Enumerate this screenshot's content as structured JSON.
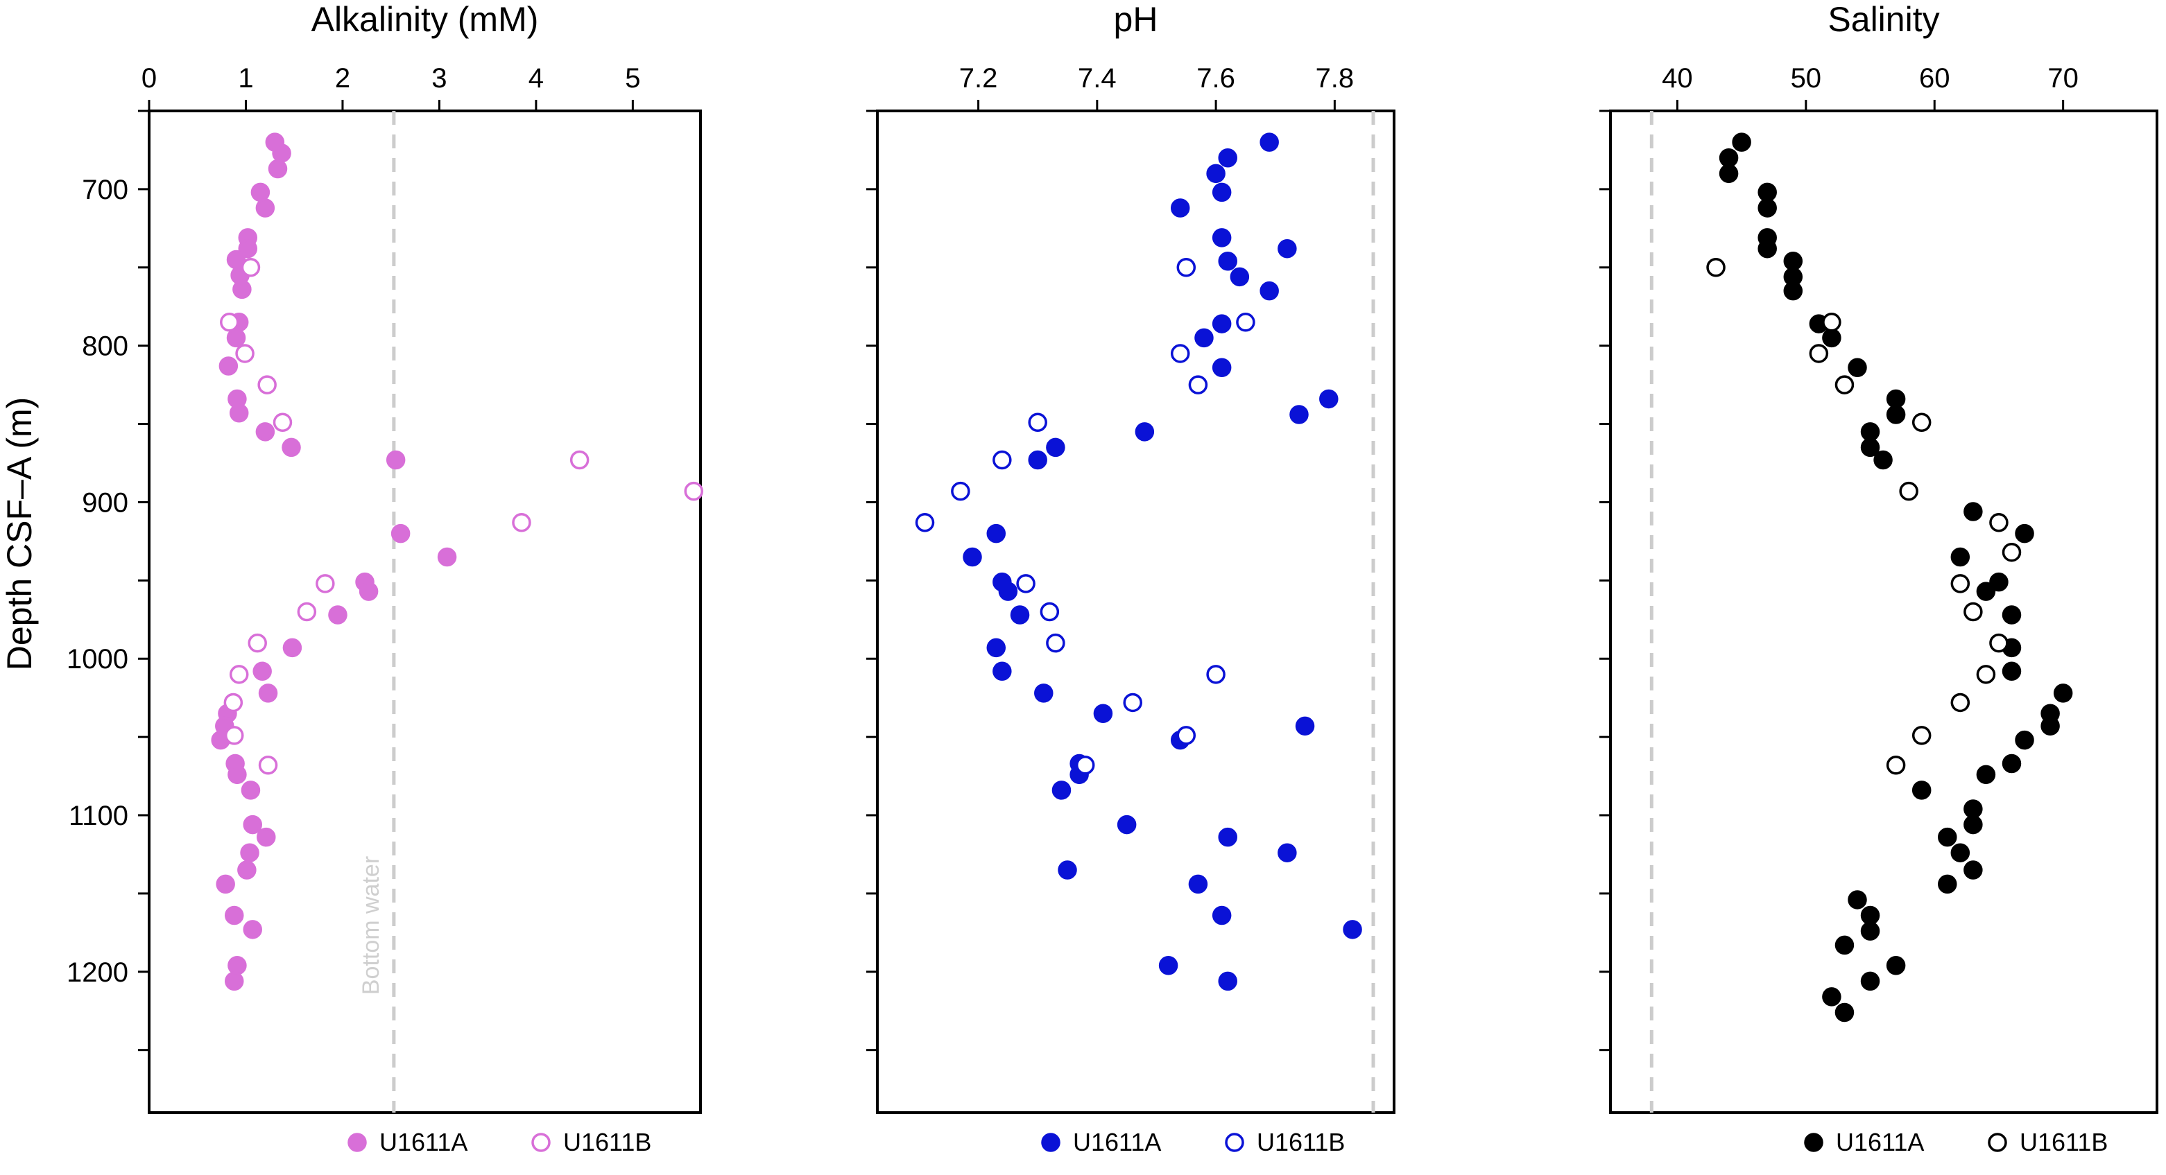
{
  "figure": {
    "ylabel": "Depth CSF–A (m)",
    "bottom_water_label": "Bottom water"
  },
  "chart_data": [
    {
      "type": "scatter",
      "title": "Alkalinity (mM)",
      "xlabel": "Alkalinity (mM)",
      "ylabel": "Depth CSF–A (m)",
      "xlim": [
        0,
        5.7
      ],
      "ylim": [
        1290,
        650
      ],
      "y_inverted": true,
      "xticks": [
        0,
        1,
        2,
        3,
        4,
        5
      ],
      "yticks": [
        700,
        800,
        900,
        1000,
        1100,
        1200
      ],
      "x_axis_position": "top",
      "bottom_water": 2.53,
      "legend_position": "bottom",
      "color": "#d86fd8",
      "series": [
        {
          "name": "U1611A",
          "marker": "filled",
          "points": [
            [
              1.3,
              670
            ],
            [
              1.37,
              677
            ],
            [
              1.33,
              687
            ],
            [
              1.15,
              702
            ],
            [
              1.2,
              712
            ],
            [
              1.02,
              731
            ],
            [
              1.02,
              738
            ],
            [
              0.9,
              745
            ],
            [
              0.94,
              755
            ],
            [
              0.96,
              764
            ],
            [
              0.93,
              785
            ],
            [
              0.9,
              795
            ],
            [
              0.82,
              813
            ],
            [
              0.91,
              834
            ],
            [
              0.93,
              843
            ],
            [
              1.2,
              855
            ],
            [
              1.47,
              865
            ],
            [
              2.55,
              873
            ],
            [
              2.6,
              920
            ],
            [
              3.08,
              935
            ],
            [
              2.23,
              951
            ],
            [
              2.27,
              957
            ],
            [
              1.95,
              972
            ],
            [
              1.48,
              993
            ],
            [
              1.17,
              1008
            ],
            [
              1.23,
              1022
            ],
            [
              0.81,
              1035
            ],
            [
              0.78,
              1043
            ],
            [
              0.74,
              1052
            ],
            [
              0.89,
              1067
            ],
            [
              0.91,
              1074
            ],
            [
              1.05,
              1084
            ],
            [
              1.07,
              1106
            ],
            [
              1.21,
              1114
            ],
            [
              1.04,
              1124
            ],
            [
              1.01,
              1135
            ],
            [
              0.79,
              1144
            ],
            [
              0.88,
              1164
            ],
            [
              1.07,
              1173
            ],
            [
              0.91,
              1196
            ],
            [
              0.88,
              1206
            ]
          ]
        },
        {
          "name": "U1611B",
          "marker": "open",
          "points": [
            [
              1.05,
              750
            ],
            [
              0.83,
              785
            ],
            [
              0.99,
              805
            ],
            [
              1.22,
              825
            ],
            [
              1.38,
              849
            ],
            [
              4.45,
              873
            ],
            [
              5.63,
              893
            ],
            [
              3.85,
              913
            ],
            [
              1.82,
              952
            ],
            [
              1.63,
              970
            ],
            [
              1.12,
              990
            ],
            [
              0.93,
              1010
            ],
            [
              0.87,
              1028
            ],
            [
              0.88,
              1049
            ],
            [
              1.23,
              1068
            ]
          ]
        }
      ]
    },
    {
      "type": "scatter",
      "title": "pH",
      "xlabel": "pH",
      "ylabel": "",
      "xlim": [
        7.03,
        7.9
      ],
      "ylim": [
        1290,
        650
      ],
      "y_inverted": true,
      "xticks": [
        7.2,
        7.4,
        7.6,
        7.8
      ],
      "x_axis_position": "top",
      "bottom_water": 7.865,
      "legend_position": "bottom",
      "color": "#0a12d6",
      "series": [
        {
          "name": "U1611A",
          "marker": "filled",
          "points": [
            [
              7.69,
              670
            ],
            [
              7.62,
              680
            ],
            [
              7.6,
              690
            ],
            [
              7.61,
              702
            ],
            [
              7.54,
              712
            ],
            [
              7.61,
              731
            ],
            [
              7.72,
              738
            ],
            [
              7.62,
              746
            ],
            [
              7.64,
              756
            ],
            [
              7.69,
              765
            ],
            [
              7.61,
              786
            ],
            [
              7.58,
              795
            ],
            [
              7.61,
              814
            ],
            [
              7.79,
              834
            ],
            [
              7.74,
              844
            ],
            [
              7.48,
              855
            ],
            [
              7.33,
              865
            ],
            [
              7.3,
              873
            ],
            [
              7.23,
              920
            ],
            [
              7.19,
              935
            ],
            [
              7.24,
              951
            ],
            [
              7.25,
              957
            ],
            [
              7.27,
              972
            ],
            [
              7.23,
              993
            ],
            [
              7.24,
              1008
            ],
            [
              7.31,
              1022
            ],
            [
              7.41,
              1035
            ],
            [
              7.75,
              1043
            ],
            [
              7.54,
              1052
            ],
            [
              7.37,
              1067
            ],
            [
              7.37,
              1074
            ],
            [
              7.34,
              1084
            ],
            [
              7.45,
              1106
            ],
            [
              7.62,
              1114
            ],
            [
              7.72,
              1124
            ],
            [
              7.35,
              1135
            ],
            [
              7.57,
              1144
            ],
            [
              7.61,
              1164
            ],
            [
              7.83,
              1173
            ],
            [
              7.52,
              1196
            ],
            [
              7.62,
              1206
            ]
          ]
        },
        {
          "name": "U1611B",
          "marker": "open",
          "points": [
            [
              7.55,
              750
            ],
            [
              7.65,
              785
            ],
            [
              7.54,
              805
            ],
            [
              7.57,
              825
            ],
            [
              7.3,
              849
            ],
            [
              7.24,
              873
            ],
            [
              7.17,
              893
            ],
            [
              7.11,
              913
            ],
            [
              7.28,
              952
            ],
            [
              7.32,
              970
            ],
            [
              7.33,
              990
            ],
            [
              7.6,
              1010
            ],
            [
              7.46,
              1028
            ],
            [
              7.55,
              1049
            ],
            [
              7.38,
              1068
            ]
          ]
        }
      ]
    },
    {
      "type": "scatter",
      "title": "Salinity",
      "xlabel": "Salinity",
      "ylabel": "",
      "xlim": [
        34.8,
        77.3
      ],
      "ylim": [
        1290,
        650
      ],
      "y_inverted": true,
      "xticks": [
        40,
        50,
        60,
        70
      ],
      "x_axis_position": "top",
      "bottom_water": 38.0,
      "legend_position": "bottom",
      "color": "#000000",
      "series": [
        {
          "name": "U1611A",
          "marker": "filled",
          "points": [
            [
              45,
              670
            ],
            [
              44,
              680
            ],
            [
              44,
              690
            ],
            [
              47,
              702
            ],
            [
              47,
              712
            ],
            [
              47,
              731
            ],
            [
              47,
              738
            ],
            [
              49,
              746
            ],
            [
              49,
              756
            ],
            [
              49,
              765
            ],
            [
              51,
              786
            ],
            [
              52,
              795
            ],
            [
              54,
              814
            ],
            [
              57,
              834
            ],
            [
              57,
              844
            ],
            [
              55,
              855
            ],
            [
              55,
              865
            ],
            [
              56,
              873
            ],
            [
              63,
              906
            ],
            [
              67,
              920
            ],
            [
              62,
              935
            ],
            [
              65,
              951
            ],
            [
              64,
              957
            ],
            [
              66,
              972
            ],
            [
              66,
              993
            ],
            [
              66,
              1008
            ],
            [
              70,
              1022
            ],
            [
              69,
              1035
            ],
            [
              69,
              1043
            ],
            [
              67,
              1052
            ],
            [
              66,
              1067
            ],
            [
              64,
              1074
            ],
            [
              59,
              1084
            ],
            [
              63,
              1096
            ],
            [
              63,
              1106
            ],
            [
              61,
              1114
            ],
            [
              62,
              1124
            ],
            [
              63,
              1135
            ],
            [
              61,
              1144
            ],
            [
              54,
              1154
            ],
            [
              55,
              1164
            ],
            [
              55,
              1174
            ],
            [
              53,
              1183
            ],
            [
              57,
              1196
            ],
            [
              55,
              1206
            ],
            [
              52,
              1216
            ],
            [
              53,
              1226
            ]
          ]
        },
        {
          "name": "U1611B",
          "marker": "open",
          "points": [
            [
              43,
              750
            ],
            [
              52,
              785
            ],
            [
              51,
              805
            ],
            [
              53,
              825
            ],
            [
              59,
              849
            ],
            [
              58,
              893
            ],
            [
              65,
              913
            ],
            [
              66,
              932
            ],
            [
              62,
              952
            ],
            [
              63,
              970
            ],
            [
              65,
              990
            ],
            [
              64,
              1010
            ],
            [
              62,
              1028
            ],
            [
              59,
              1049
            ],
            [
              57,
              1068
            ]
          ]
        }
      ]
    }
  ]
}
